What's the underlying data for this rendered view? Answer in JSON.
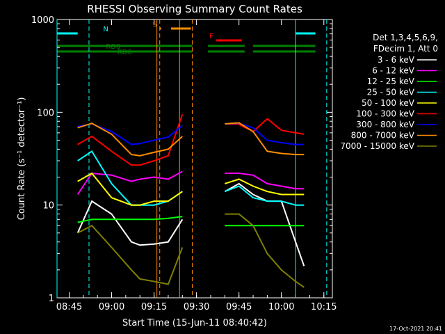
{
  "chart_data": {
    "type": "line",
    "title": "RHESSI Observing Summary Count Rates",
    "xlabel": "Start Time (15-Jun-11 08:40:42)",
    "ylabel": "Count Rate (s⁻¹ detector⁻¹)",
    "y_scale": "log",
    "ylim": [
      1,
      1000
    ],
    "xlim": [
      "08:40:42",
      "10:18:00"
    ],
    "x_ticks": [
      "08:45",
      "09:00",
      "09:15",
      "09:30",
      "09:45",
      "10:00",
      "10:15"
    ],
    "y_ticks": [
      "1",
      "10",
      "100",
      "1000"
    ],
    "timestamp": "17-Oct-2021 20:41",
    "legend_header": [
      "Det 1,3,4,5,6,9,",
      "FDecim 1, Att 0"
    ],
    "legend_position": "right",
    "series": [
      {
        "name": "3 - 6 keV",
        "color": "#ffffff",
        "x": [
          "08:48",
          "08:53",
          "09:00",
          "09:07",
          "09:10",
          "09:15",
          "09:20",
          "09:25",
          "09:40",
          "09:45",
          "09:50",
          "09:55",
          "10:00",
          "10:05",
          "10:08"
        ],
        "values": [
          5,
          11,
          8,
          4,
          3.7,
          3.8,
          4,
          7,
          14,
          17,
          13,
          11,
          11,
          4,
          2.2
        ]
      },
      {
        "name": "6 - 12 keV",
        "color": "#ff00ff",
        "x": [
          "08:48",
          "08:53",
          "09:00",
          "09:07",
          "09:10",
          "09:15",
          "09:20",
          "09:25",
          "09:40",
          "09:45",
          "09:50",
          "09:55",
          "10:00",
          "10:05",
          "10:08"
        ],
        "values": [
          13,
          22,
          21,
          18,
          19,
          20,
          19,
          23,
          22,
          22,
          21,
          17,
          16,
          15,
          15
        ]
      },
      {
        "name": "12 - 25 keV",
        "color": "#00ff00",
        "x": [
          "08:48",
          "08:53",
          "09:00",
          "09:07",
          "09:10",
          "09:15",
          "09:20",
          "09:25",
          "09:40",
          "09:45",
          "09:50",
          "09:55",
          "10:00",
          "10:05",
          "10:08"
        ],
        "values": [
          6.5,
          7,
          7,
          7,
          7,
          7,
          7.2,
          7.5,
          6,
          6,
          6,
          6,
          6,
          6,
          6
        ]
      },
      {
        "name": "25 - 50 keV",
        "color": "#00ffff",
        "x": [
          "08:48",
          "08:53",
          "09:00",
          "09:07",
          "09:10",
          "09:15",
          "09:20",
          "09:25",
          "09:40",
          "09:45",
          "09:50",
          "09:55",
          "10:00",
          "10:05",
          "10:08"
        ],
        "values": [
          30,
          38,
          17,
          10,
          10,
          10,
          11,
          14,
          14,
          16,
          12,
          11,
          11,
          10,
          10
        ]
      },
      {
        "name": "50 - 100 keV",
        "color": "#ffff00",
        "x": [
          "08:48",
          "08:53",
          "09:00",
          "09:07",
          "09:10",
          "09:15",
          "09:20",
          "09:25",
          "09:40",
          "09:45",
          "09:50",
          "09:55",
          "10:00",
          "10:05",
          "10:08"
        ],
        "values": [
          18,
          22,
          12,
          10,
          10,
          11,
          11,
          14,
          17,
          19,
          16,
          14,
          13,
          13,
          13
        ]
      },
      {
        "name": "100 - 300 keV",
        "color": "#ff0000",
        "x": [
          "08:48",
          "08:53",
          "09:00",
          "09:07",
          "09:10",
          "09:15",
          "09:20",
          "09:25",
          "09:40",
          "09:45",
          "09:50",
          "09:55",
          "10:00",
          "10:05",
          "10:08"
        ],
        "values": [
          45,
          55,
          38,
          27,
          27,
          30,
          34,
          95,
          75,
          74,
          62,
          85,
          64,
          60,
          58
        ]
      },
      {
        "name": "300 - 800 keV",
        "color": "#0000ff",
        "x": [
          "08:48",
          "08:53",
          "09:00",
          "09:07",
          "09:10",
          "09:15",
          "09:20",
          "09:25",
          "09:40",
          "09:45",
          "09:50",
          "09:55",
          "10:00",
          "10:05",
          "10:08"
        ],
        "values": [
          70,
          75,
          62,
          45,
          46,
          50,
          54,
          72,
          75,
          76,
          68,
          50,
          47,
          45,
          45
        ]
      },
      {
        "name": "800 - 7000 keV",
        "color": "#ff8c00",
        "x": [
          "08:48",
          "08:53",
          "09:00",
          "09:07",
          "09:10",
          "09:15",
          "09:20",
          "09:25",
          "09:40",
          "09:45",
          "09:50",
          "09:55",
          "10:00",
          "10:05",
          "10:08"
        ],
        "values": [
          68,
          76,
          58,
          35,
          34,
          37,
          40,
          55,
          75,
          77,
          62,
          38,
          36,
          35,
          35
        ]
      },
      {
        "name": "7000 - 15000 keV",
        "color": "#808000",
        "x": [
          "08:48",
          "08:53",
          "09:00",
          "09:07",
          "09:10",
          "09:15",
          "09:20",
          "09:25",
          "09:40",
          "09:45",
          "09:50",
          "09:55",
          "10:00",
          "10:05",
          "10:08"
        ],
        "values": [
          5,
          6,
          3.5,
          2,
          1.6,
          1.5,
          1.4,
          3.5,
          8,
          8,
          6,
          3,
          2,
          1.5,
          1.3
        ]
      }
    ],
    "flags": [
      {
        "label": "N",
        "color": "#00ffff",
        "segments": [
          [
            "08:40:42",
            "08:48"
          ],
          [
            "10:05",
            "10:12"
          ]
        ]
      },
      {
        "label": "S",
        "color": "#ff8c00",
        "segments": [
          [
            "09:17",
            "09:17:30"
          ],
          [
            "09:21",
            "09:28"
          ]
        ]
      },
      {
        "label": "F",
        "color": "#ff0000",
        "segments": [
          [
            "09:37",
            "09:46"
          ]
        ]
      },
      {
        "label": "RD0",
        "color": "#008000",
        "segments": [
          [
            "08:40:42",
            "09:28:30"
          ],
          [
            "09:34",
            "09:47"
          ],
          [
            "09:50",
            "10:12"
          ]
        ]
      },
      {
        "label": "RD6",
        "color": "#008000",
        "segments": [
          [
            "08:40:42",
            "09:28:30"
          ],
          [
            "09:34",
            "09:47"
          ],
          [
            "09:50",
            "10:12"
          ]
        ]
      }
    ]
  }
}
